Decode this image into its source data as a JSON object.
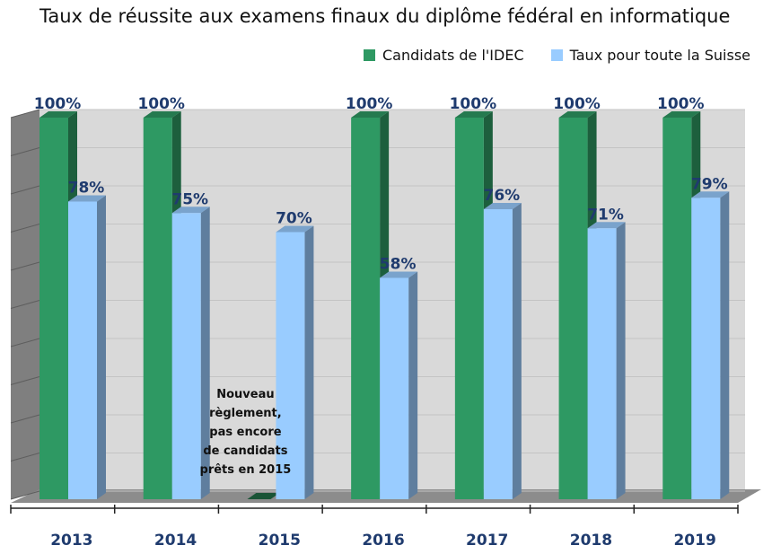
{
  "chart_data": {
    "type": "bar",
    "title": "Taux de réussite aux examens finaux du diplôme fédéral en informatique",
    "categories": [
      "2013",
      "2014",
      "2015",
      "2016",
      "2017",
      "2018",
      "2019"
    ],
    "series": [
      {
        "name": "Candidats de l'IDEC",
        "values": [
          100,
          100,
          null,
          100,
          100,
          100,
          100
        ],
        "labels": [
          "100%",
          "100%",
          "",
          "100%",
          "100%",
          "100%",
          "100%"
        ],
        "color": "#2e9963"
      },
      {
        "name": "Taux pour toute la Suisse",
        "values": [
          78,
          75,
          70,
          58,
          76,
          71,
          79
        ],
        "labels": [
          "78%",
          "75%",
          "70%",
          "58%",
          "76%",
          "71%",
          "79%"
        ],
        "color": "#99ccff"
      }
    ],
    "ylim": [
      0,
      100
    ],
    "grid": true,
    "legend": "top-right",
    "annotations": [
      {
        "category": "2015",
        "lines": [
          "Nouveau",
          "règlement,",
          "pas encore",
          "de candidats",
          "prêts en 2015"
        ]
      }
    ]
  }
}
